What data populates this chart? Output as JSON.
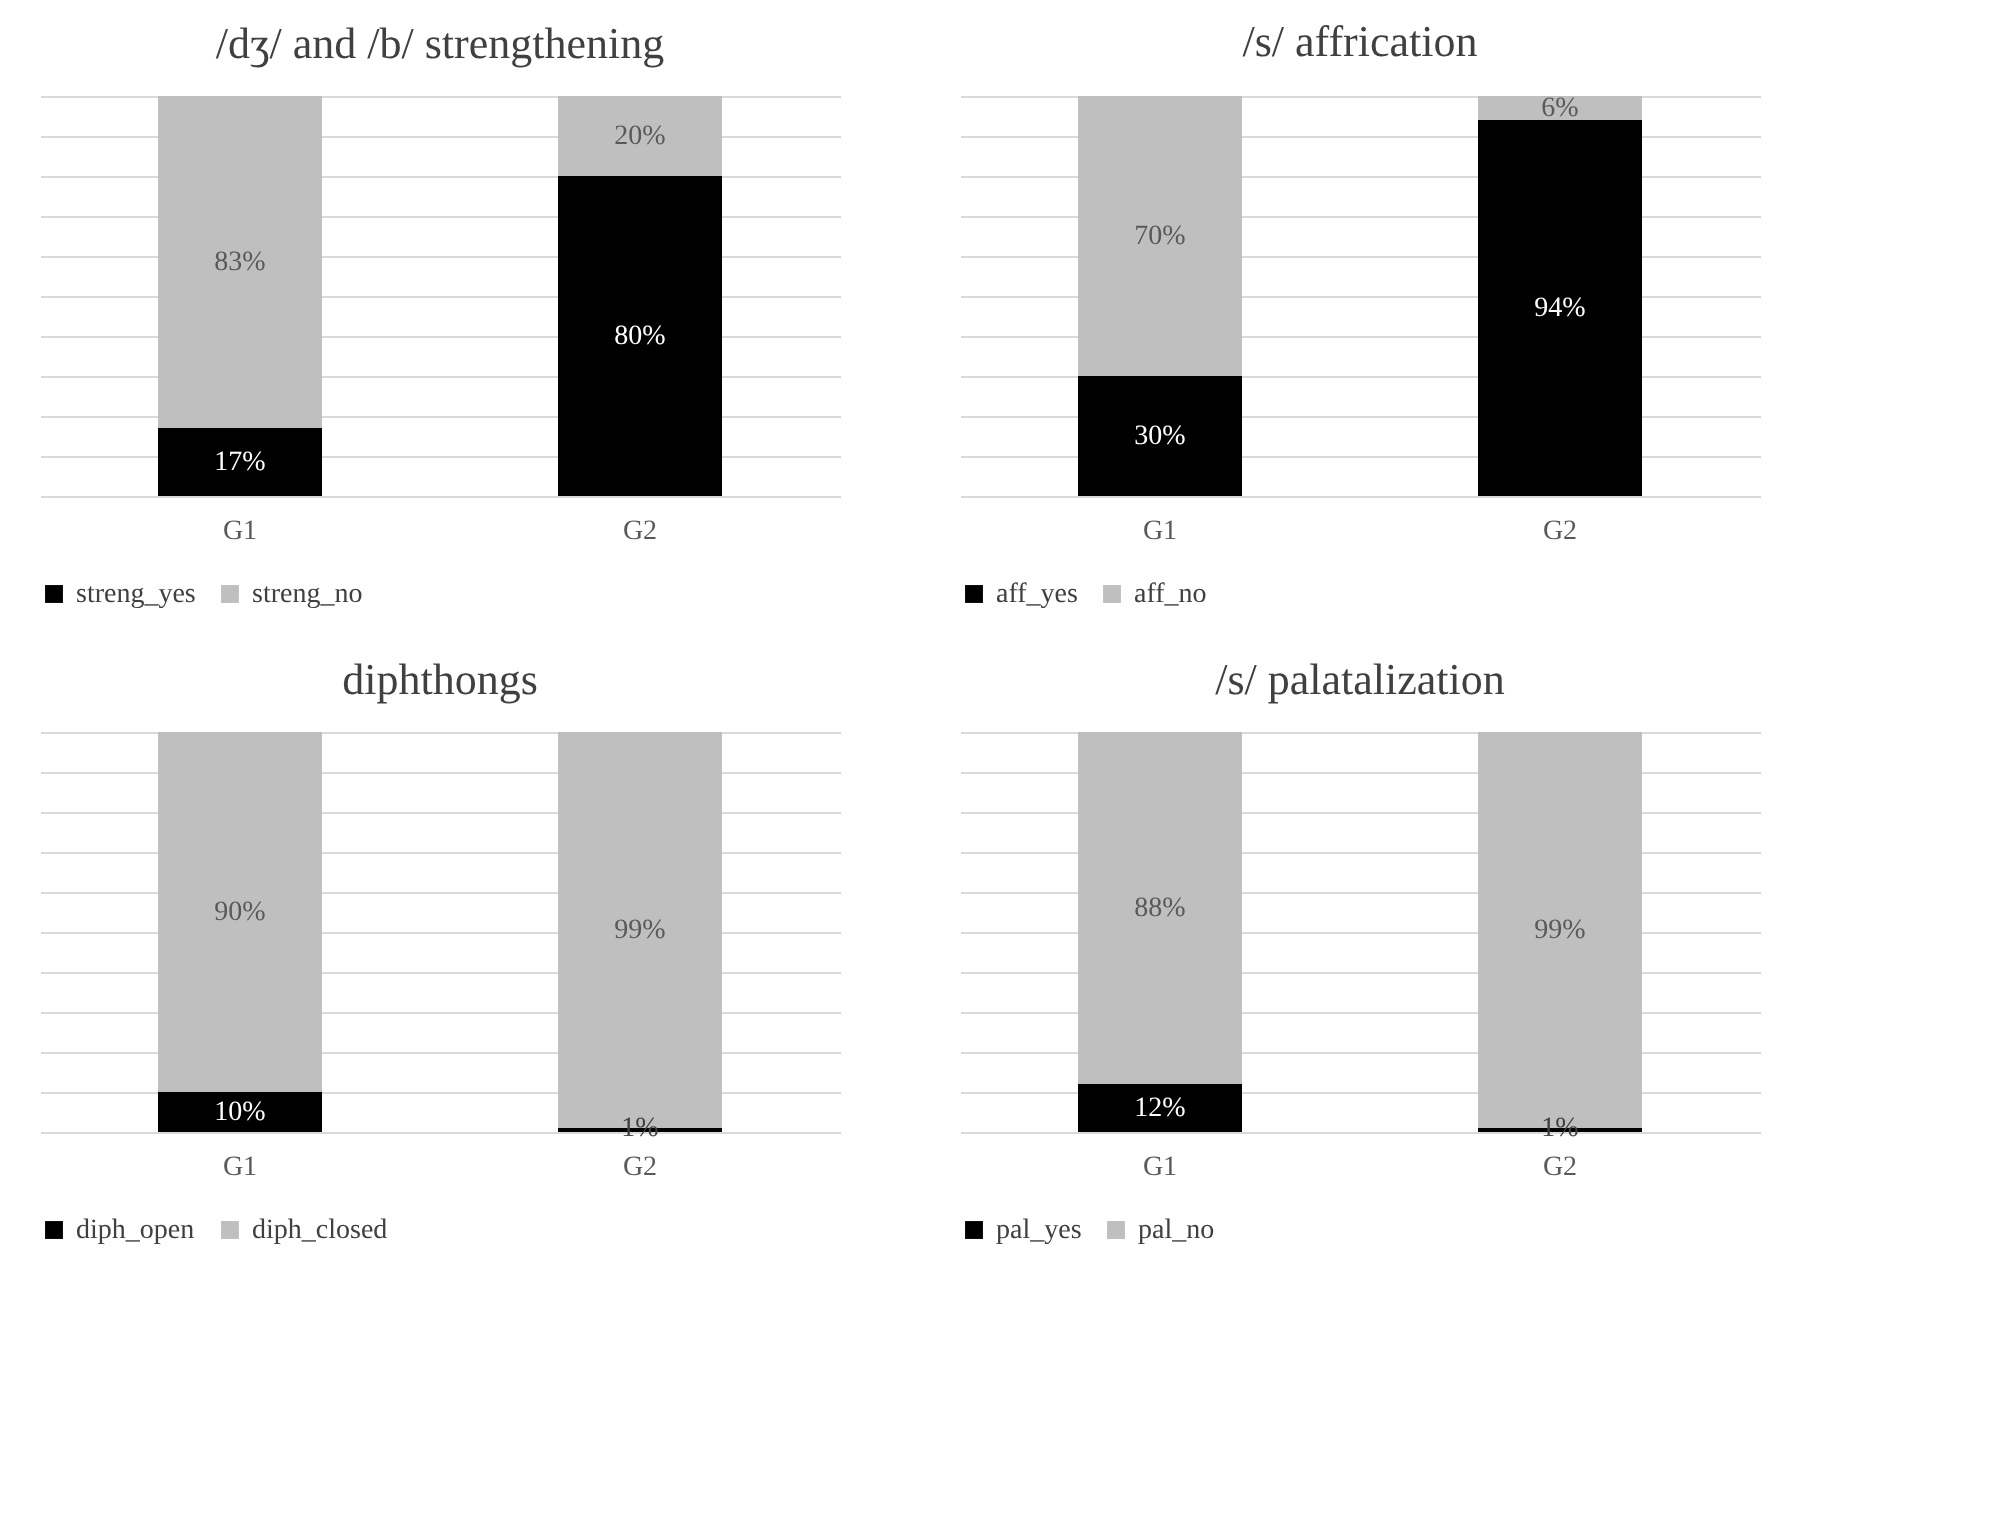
{
  "chart_data": [
    {
      "type": "bar",
      "title": "/dʒ/ and /b/ strengthening",
      "stacked": true,
      "categories": [
        "G1",
        "G2"
      ],
      "tick_labels": "x",
      "grid": "y",
      "legend": "bottom",
      "series": [
        {
          "name": "streng_yes",
          "color": "#000000",
          "values": [
            17,
            80
          ],
          "value_labels": [
            "17%",
            "80%"
          ]
        },
        {
          "name": "streng_no",
          "color": "#bfbfbf",
          "values": [
            83,
            20
          ],
          "value_labels": [
            "83%",
            "20%"
          ]
        }
      ]
    },
    {
      "type": "bar",
      "title": "/s/ affrication",
      "stacked": true,
      "categories": [
        "G1",
        "G2"
      ],
      "tick_labels": "x",
      "grid": "y",
      "legend": "bottom",
      "series": [
        {
          "name": "aff_yes",
          "color": "#000000",
          "values": [
            30,
            94
          ],
          "value_labels": [
            "30%",
            "94%"
          ]
        },
        {
          "name": "aff_no",
          "color": "#bfbfbf",
          "values": [
            70,
            6
          ],
          "value_labels": [
            "70%",
            "6%"
          ]
        }
      ]
    },
    {
      "type": "bar",
      "title": "diphthongs",
      "stacked": true,
      "categories": [
        "G1",
        "G2"
      ],
      "tick_labels": "x",
      "grid": "y",
      "legend": "bottom",
      "series": [
        {
          "name": "diph_open",
          "color": "#000000",
          "values": [
            10,
            1
          ],
          "value_labels": [
            "10%",
            "1%"
          ]
        },
        {
          "name": "diph_closed",
          "color": "#bfbfbf",
          "values": [
            90,
            99
          ],
          "value_labels": [
            "90%",
            "99%"
          ]
        }
      ]
    },
    {
      "type": "bar",
      "title": "/s/ palatalization",
      "stacked": true,
      "categories": [
        "G1",
        "G2"
      ],
      "tick_labels": "x",
      "grid": "y",
      "legend": "bottom",
      "series": [
        {
          "name": "pal_yes",
          "color": "#000000",
          "values": [
            12,
            1
          ],
          "value_labels": [
            "12%",
            "1%"
          ]
        },
        {
          "name": "pal_no",
          "color": "#bfbfbf",
          "values": [
            88,
            99
          ],
          "value_labels": [
            "88%",
            "99%"
          ]
        }
      ]
    }
  ]
}
